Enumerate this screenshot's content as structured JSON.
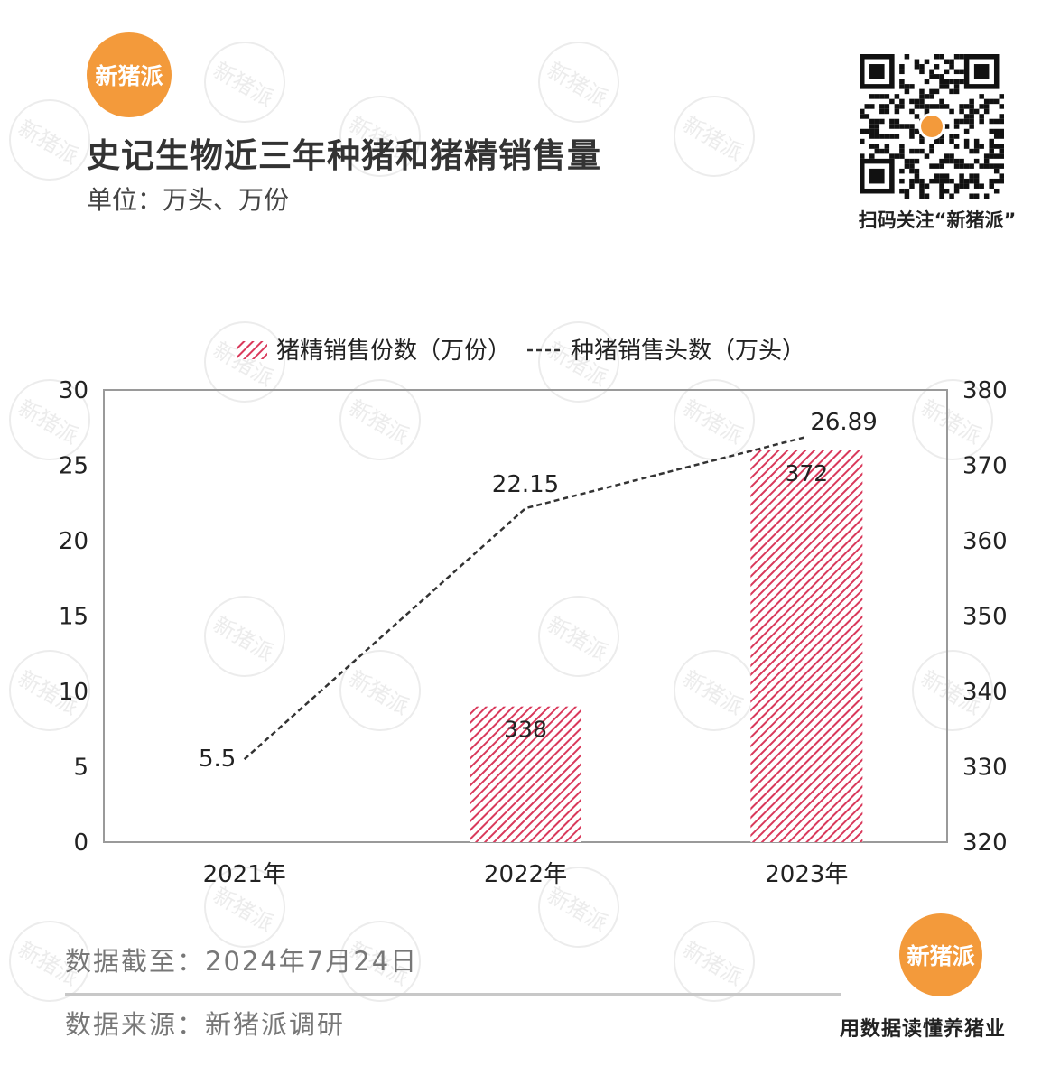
{
  "brand": {
    "name": "新猪派",
    "slogan": "用数据读懂养猪业"
  },
  "header": {
    "title": "史记生物近三年种猪和猪精销售量",
    "unit": "单位：万头、万份"
  },
  "qr": {
    "caption": "扫码关注“新猪派”"
  },
  "footer": {
    "date_note": "数据截至：2024年7月24日",
    "source_note": "数据来源：新猪派调研"
  },
  "colors": {
    "brand_orange": "#f39a3b",
    "bar_hatch": "#d9395b",
    "line": "#333333"
  },
  "chart_data": {
    "type": "bar",
    "categories": [
      "2021年",
      "2022年",
      "2023年"
    ],
    "series": [
      {
        "name": "猪精销售份数（万份）",
        "type": "bar",
        "axis": "right",
        "values": [
          null,
          338,
          372
        ],
        "labels": [
          "",
          "338",
          "372"
        ]
      },
      {
        "name": "种猪销售头数（万头）",
        "type": "line",
        "axis": "left",
        "style": "dashed",
        "values": [
          5.5,
          22.15,
          26.89
        ],
        "labels": [
          "5.5",
          "22.15",
          "26.89"
        ]
      }
    ],
    "y_left": {
      "min": 0,
      "max": 30,
      "ticks": [
        "0",
        "5",
        "10",
        "15",
        "20",
        "25",
        "30"
      ]
    },
    "y_right": {
      "min": 320,
      "max": 380,
      "ticks": [
        "320",
        "330",
        "340",
        "350",
        "360",
        "370",
        "380"
      ]
    },
    "legend_position": "top",
    "grid": false
  }
}
